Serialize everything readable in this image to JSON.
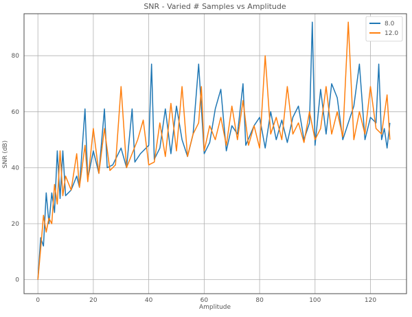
{
  "chart_data": {
    "type": "line",
    "title": "SNR - Varied # Samples vs Amplitude",
    "xlabel": "Amplitude",
    "ylabel": "SNR (dB)",
    "xlim": [
      -5,
      133
    ],
    "ylim": [
      -5,
      95
    ],
    "xticks": [
      0,
      20,
      40,
      60,
      80,
      100,
      120
    ],
    "yticks": [
      0,
      20,
      40,
      60,
      80
    ],
    "grid": true,
    "legend_position": "top-right",
    "series": [
      {
        "name": "8.0",
        "color": "#1f77b4",
        "x": [
          0,
          1,
          2,
          3,
          4,
          5,
          6,
          7,
          8,
          9,
          10,
          12,
          14,
          15,
          17,
          18,
          20,
          22,
          24,
          25,
          27,
          30,
          32,
          34,
          35,
          37,
          40,
          41,
          42,
          44,
          46,
          48,
          50,
          52,
          54,
          56,
          58,
          60,
          62,
          64,
          66,
          68,
          70,
          72,
          74,
          75,
          78,
          80,
          82,
          84,
          86,
          88,
          90,
          92,
          94,
          96,
          98,
          99,
          100,
          102,
          104,
          106,
          108,
          110,
          112,
          114,
          116,
          118,
          120,
          122,
          123,
          124,
          125,
          126,
          127
        ],
        "y": [
          0,
          15,
          12,
          31,
          20,
          31,
          24,
          46,
          29,
          46,
          30,
          32,
          37,
          33,
          61,
          36,
          46,
          38,
          61,
          40,
          41,
          47,
          40,
          61,
          42,
          45,
          48,
          77,
          43,
          47,
          61,
          45,
          62,
          50,
          44,
          52,
          77,
          45,
          49,
          61,
          68,
          46,
          55,
          52,
          70,
          48,
          55,
          58,
          47,
          60,
          50,
          57,
          49,
          58,
          62,
          50,
          56,
          92,
          48,
          68,
          52,
          70,
          65,
          50,
          56,
          62,
          77,
          50,
          58,
          56,
          77,
          50,
          54,
          47,
          56
        ]
      },
      {
        "name": "12.0",
        "color": "#ff7f0e",
        "x": [
          0,
          1,
          2,
          3,
          4,
          5,
          6,
          7,
          8,
          9,
          10,
          12,
          14,
          15,
          17,
          18,
          20,
          22,
          24,
          26,
          28,
          30,
          32,
          34,
          36,
          38,
          40,
          42,
          44,
          46,
          48,
          50,
          52,
          54,
          56,
          58,
          59,
          60,
          62,
          64,
          66,
          68,
          70,
          72,
          74,
          76,
          78,
          80,
          82,
          84,
          86,
          88,
          90,
          92,
          94,
          96,
          98,
          100,
          102,
          104,
          106,
          108,
          110,
          112,
          114,
          116,
          118,
          120,
          122,
          124,
          126,
          127
        ],
        "y": [
          0,
          11,
          23,
          17,
          22,
          20,
          34,
          27,
          46,
          30,
          37,
          32,
          45,
          33,
          48,
          35,
          54,
          38,
          54,
          39,
          41,
          69,
          40,
          45,
          50,
          57,
          41,
          42,
          56,
          44,
          63,
          46,
          69,
          44,
          52,
          56,
          69,
          46,
          55,
          50,
          58,
          48,
          62,
          50,
          64,
          48,
          55,
          47,
          80,
          52,
          58,
          50,
          69,
          52,
          56,
          49,
          60,
          50,
          54,
          69,
          52,
          60,
          51,
          92,
          50,
          60,
          52,
          69,
          54,
          52,
          66,
          50
        ]
      }
    ]
  }
}
